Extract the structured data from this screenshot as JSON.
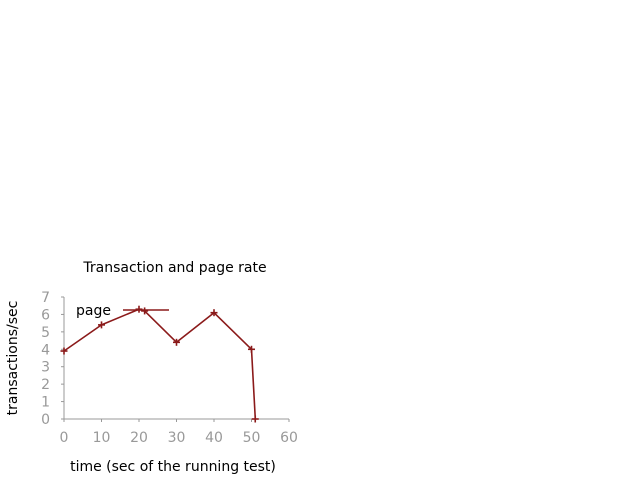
{
  "chart_data": {
    "type": "line",
    "title": "Transaction and page rate",
    "xlabel": "time (sec of the running test)",
    "ylabel": "transactions/sec",
    "xlim": [
      0,
      60
    ],
    "ylim": [
      0,
      7
    ],
    "xticks": [
      0,
      10,
      20,
      30,
      40,
      50,
      60
    ],
    "yticks": [
      0,
      1,
      2,
      3,
      4,
      5,
      6,
      7
    ],
    "grid": false,
    "legend_position": "top-left",
    "series": [
      {
        "name": "page",
        "color": "#8b1a1a",
        "marker": "plus",
        "x": [
          0,
          10,
          20,
          21.5,
          30,
          40,
          50,
          51
        ],
        "y": [
          3.9,
          5.4,
          6.3,
          6.2,
          4.4,
          6.1,
          4.0,
          0
        ]
      }
    ]
  }
}
